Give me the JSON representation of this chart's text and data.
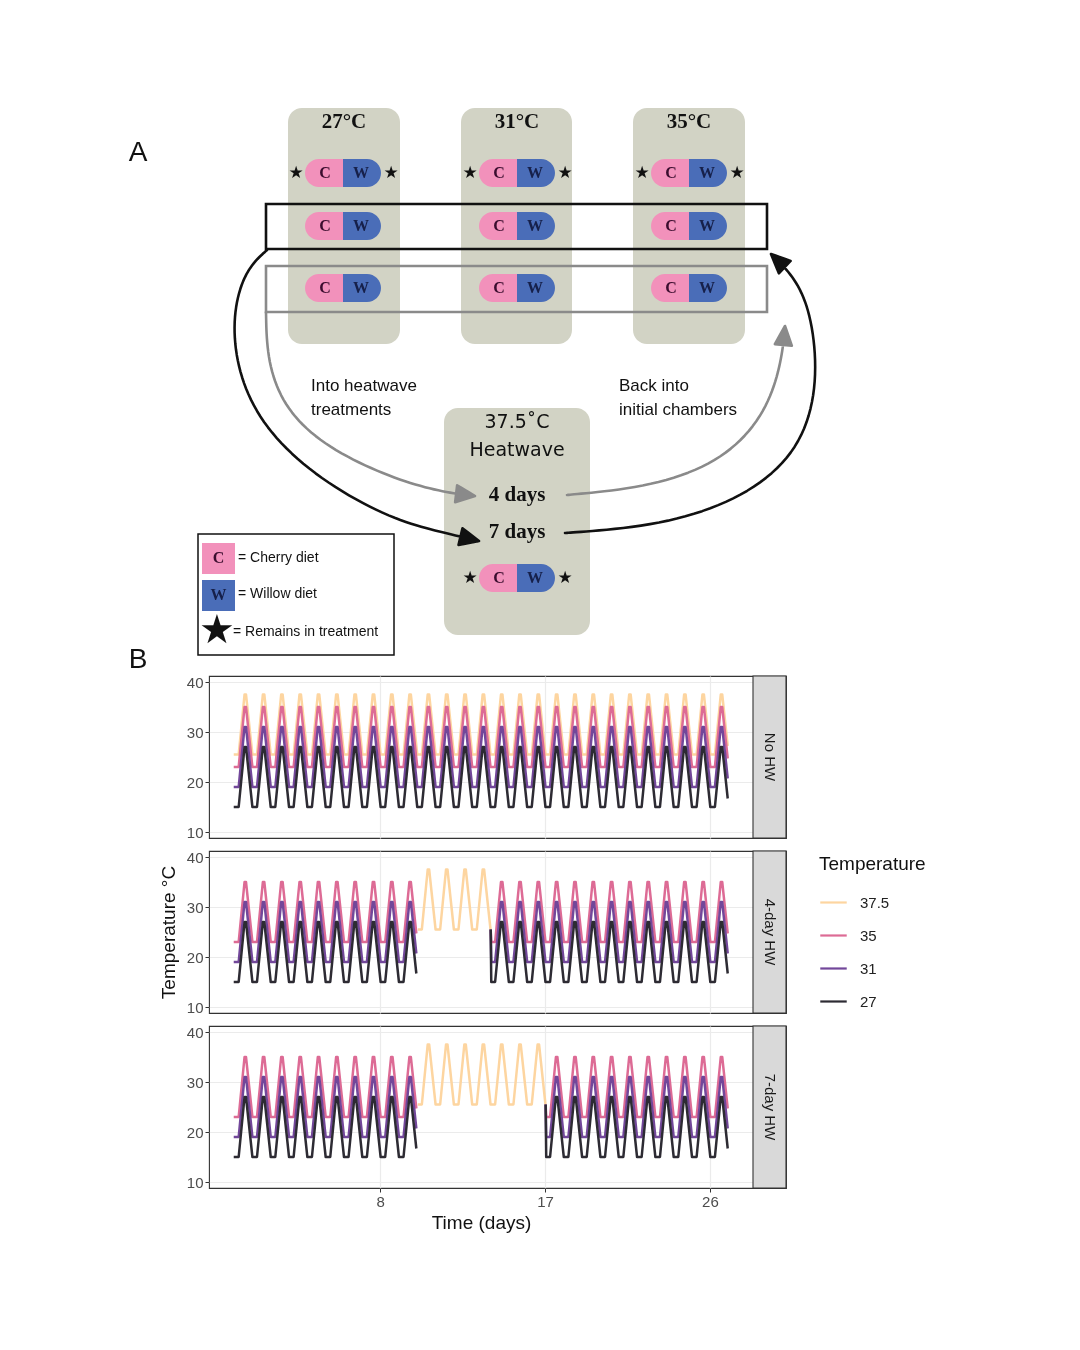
{
  "chart_data": [
    {
      "type": "other",
      "annotations": [
        "A",
        "27°C",
        "31°C",
        "35°C",
        "C",
        "W",
        "Into heatwave treatments",
        "Back into initial chambers",
        "37.5˚C Heatwave",
        "4 days",
        "7 days",
        "= Cherry diet",
        "= Willow diet",
        "= Remains in treatment",
        "★"
      ]
    },
    {
      "type": "line",
      "annotations": [
        "No HW",
        "B"
      ],
      "legend_title": "Temperature",
      "legend": "right",
      "xlim": [
        -1.35,
        28.35
      ],
      "xticks": [
        8,
        17,
        26
      ],
      "ylim": [
        8.8,
        41.2
      ],
      "yticks": [
        10,
        20,
        30,
        40
      ],
      "tick_labels": "y",
      "grid": true,
      "x": [
        0,
        0.27,
        0.59,
        0.67,
        1.02,
        1.27,
        1.59,
        1.67,
        2.02,
        2.27,
        2.59,
        2.67,
        3.02,
        3.27,
        3.59,
        3.67,
        4.02,
        4.27,
        4.59,
        4.67,
        5.02,
        5.27,
        5.59,
        5.67,
        6.02,
        6.27,
        6.59,
        6.67,
        7.02,
        7.27,
        7.59,
        7.67,
        8.02,
        8.27,
        8.59,
        8.67,
        9.02,
        9.27,
        9.59,
        9.67,
        10.02,
        10.27,
        10.59,
        10.67,
        11.02,
        11.27,
        11.59,
        11.67,
        12.02,
        12.27,
        12.59,
        12.67,
        13.02,
        13.27,
        13.59,
        13.67,
        14.02,
        14.27,
        14.59,
        14.67,
        15.02,
        15.27,
        15.59,
        15.67,
        16.02,
        16.27,
        16.59,
        16.67,
        17.02,
        17.27,
        17.59,
        17.67,
        18.02,
        18.27,
        18.59,
        18.67,
        19.02,
        19.27,
        19.59,
        19.67,
        20.02,
        20.27,
        20.59,
        20.67,
        21.02,
        21.27,
        21.59,
        21.67,
        22.02,
        22.27,
        22.59,
        22.67,
        23.02,
        23.27,
        23.59,
        23.67,
        24.02,
        24.27,
        24.59,
        24.67,
        25.02,
        25.27,
        25.59,
        25.67,
        26.02,
        26.27,
        26.59,
        26.67,
        26.97
      ],
      "series": [
        {
          "name": "37.5",
          "color": "#fdd5a0",
          "values": [
            25.5,
            25.5,
            37.5,
            37.5,
            25.5,
            25.5,
            37.5,
            37.5,
            25.5,
            25.5,
            37.5,
            37.5,
            25.5,
            25.5,
            37.5,
            37.5,
            25.5,
            25.5,
            37.5,
            37.5,
            25.5,
            25.5,
            37.5,
            37.5,
            25.5,
            25.5,
            37.5,
            37.5,
            25.5,
            25.5,
            37.5,
            37.5,
            25.5,
            25.5,
            37.5,
            37.5,
            25.5,
            25.5,
            37.5,
            37.5,
            25.5,
            25.5,
            37.5,
            37.5,
            25.5,
            25.5,
            37.5,
            37.5,
            25.5,
            25.5,
            37.5,
            37.5,
            25.5,
            25.5,
            37.5,
            37.5,
            25.5,
            25.5,
            37.5,
            37.5,
            25.5,
            25.5,
            37.5,
            37.5,
            25.5,
            25.5,
            37.5,
            37.5,
            25.5,
            25.5,
            37.5,
            37.5,
            25.5,
            25.5,
            37.5,
            37.5,
            25.5,
            25.5,
            37.5,
            37.5,
            25.5,
            25.5,
            37.5,
            37.5,
            25.5,
            25.5,
            37.5,
            37.5,
            25.5,
            25.5,
            37.5,
            37.5,
            25.5,
            25.5,
            37.5,
            37.5,
            25.5,
            25.5,
            37.5,
            37.5,
            25.5,
            25.5,
            37.5,
            37.5,
            25.5,
            25.5,
            37.5,
            37.5,
            27.2
          ]
        },
        {
          "name": "35",
          "color": "#dd6b95",
          "values": [
            23,
            23,
            35,
            35,
            23,
            23,
            35,
            35,
            23,
            23,
            35,
            35,
            23,
            23,
            35,
            35,
            23,
            23,
            35,
            35,
            23,
            23,
            35,
            35,
            23,
            23,
            35,
            35,
            23,
            23,
            35,
            35,
            23,
            23,
            35,
            35,
            23,
            23,
            35,
            35,
            23,
            23,
            35,
            35,
            23,
            23,
            35,
            35,
            23,
            23,
            35,
            35,
            23,
            23,
            35,
            35,
            23,
            23,
            35,
            35,
            23,
            23,
            35,
            35,
            23,
            23,
            35,
            35,
            23,
            23,
            35,
            35,
            23,
            23,
            35,
            35,
            23,
            23,
            35,
            35,
            23,
            23,
            35,
            35,
            23,
            23,
            35,
            35,
            23,
            23,
            35,
            35,
            23,
            23,
            35,
            35,
            23,
            23,
            35,
            35,
            23,
            23,
            35,
            35,
            23,
            23,
            35,
            35,
            24.7
          ]
        },
        {
          "name": "31",
          "color": "#72479a",
          "values": [
            19,
            19,
            31,
            31,
            19,
            19,
            31,
            31,
            19,
            19,
            31,
            31,
            19,
            19,
            31,
            31,
            19,
            19,
            31,
            31,
            19,
            19,
            31,
            31,
            19,
            19,
            31,
            31,
            19,
            19,
            31,
            31,
            19,
            19,
            31,
            31,
            19,
            19,
            31,
            31,
            19,
            19,
            31,
            31,
            19,
            19,
            31,
            31,
            19,
            19,
            31,
            31,
            19,
            19,
            31,
            31,
            19,
            19,
            31,
            31,
            19,
            19,
            31,
            31,
            19,
            19,
            31,
            31,
            19,
            19,
            31,
            31,
            19,
            19,
            31,
            31,
            19,
            19,
            31,
            31,
            19,
            19,
            31,
            31,
            19,
            19,
            31,
            31,
            19,
            19,
            31,
            31,
            19,
            19,
            31,
            31,
            19,
            19,
            31,
            31,
            19,
            19,
            31,
            31,
            19,
            19,
            31,
            31,
            20.7
          ]
        },
        {
          "name": "27",
          "color": "#2d2b33",
          "values": [
            15,
            15,
            27,
            27,
            15,
            15,
            27,
            27,
            15,
            15,
            27,
            27,
            15,
            15,
            27,
            27,
            15,
            15,
            27,
            27,
            15,
            15,
            27,
            27,
            15,
            15,
            27,
            27,
            15,
            15,
            27,
            27,
            15,
            15,
            27,
            27,
            15,
            15,
            27,
            27,
            15,
            15,
            27,
            27,
            15,
            15,
            27,
            27,
            15,
            15,
            27,
            27,
            15,
            15,
            27,
            27,
            15,
            15,
            27,
            27,
            15,
            15,
            27,
            27,
            15,
            15,
            27,
            27,
            15,
            15,
            27,
            27,
            15,
            15,
            27,
            27,
            15,
            15,
            27,
            27,
            15,
            15,
            27,
            27,
            15,
            15,
            27,
            27,
            15,
            15,
            27,
            27,
            15,
            15,
            27,
            27,
            15,
            15,
            27,
            27,
            15,
            15,
            27,
            27,
            15,
            15,
            27,
            27,
            16.7
          ]
        }
      ]
    },
    {
      "type": "line",
      "annotations": [
        "4-day HW"
      ],
      "ylabel": "Temperature °C",
      "xlim": [
        -1.35,
        28.35
      ],
      "xticks": [
        8,
        17,
        26
      ],
      "ylim": [
        8.8,
        41.2
      ],
      "yticks": [
        10,
        20,
        30,
        40
      ],
      "tick_labels": "y",
      "grid": true,
      "x": [
        0,
        0.27,
        0.59,
        0.67,
        1.02,
        1.27,
        1.59,
        1.67,
        2.02,
        2.27,
        2.59,
        2.67,
        3.02,
        3.27,
        3.59,
        3.67,
        4.02,
        4.27,
        4.59,
        4.67,
        5.02,
        5.27,
        5.59,
        5.67,
        6.02,
        6.27,
        6.59,
        6.67,
        7.02,
        7.27,
        7.59,
        7.67,
        8.02,
        8.27,
        8.59,
        8.67,
        9.02,
        9.27,
        9.59,
        9.67,
        9.97,
        12,
        14.03,
        14.06,
        14.27,
        14.59,
        14.67,
        15.02,
        15.27,
        15.59,
        15.67,
        16.02,
        16.27,
        16.59,
        16.67,
        17.02,
        17.27,
        17.59,
        17.67,
        18.02,
        18.27,
        18.59,
        18.67,
        19.02,
        19.27,
        19.59,
        19.67,
        20.02,
        20.27,
        20.59,
        20.67,
        21.02,
        21.27,
        21.59,
        21.67,
        22.02,
        22.27,
        22.59,
        22.67,
        23.02,
        23.27,
        23.59,
        23.67,
        24.02,
        24.27,
        24.59,
        24.67,
        25.02,
        25.27,
        25.59,
        25.67,
        26.02,
        26.27,
        26.59,
        26.67,
        26.97
      ],
      "series": [
        {
          "name": "37.5",
          "color": "#fdd5a0",
          "x": [
            10.05,
            10.27,
            10.59,
            10.67,
            11.02,
            11.27,
            11.59,
            11.67,
            12.02,
            12.27,
            12.59,
            12.67,
            13.02,
            13.27,
            13.59,
            13.67,
            14.02
          ],
          "values": [
            25.5,
            25.5,
            37.5,
            37.5,
            25.5,
            25.5,
            37.5,
            37.5,
            25.5,
            25.5,
            37.5,
            37.5,
            25.5,
            25.5,
            37.5,
            37.5,
            25.5
          ]
        },
        {
          "name": "35",
          "color": "#dd6b95",
          "values": [
            23,
            23,
            35,
            35,
            23,
            23,
            35,
            35,
            23,
            23,
            35,
            35,
            23,
            23,
            35,
            35,
            23,
            23,
            35,
            35,
            23,
            23,
            35,
            35,
            23,
            23,
            35,
            35,
            23,
            23,
            35,
            35,
            23,
            23,
            35,
            35,
            23,
            23,
            35,
            35,
            24.7,
            null,
            25.5,
            23,
            23,
            35,
            35,
            23,
            23,
            35,
            35,
            23,
            23,
            35,
            35,
            23,
            23,
            35,
            35,
            23,
            23,
            35,
            35,
            23,
            23,
            35,
            35,
            23,
            23,
            35,
            35,
            23,
            23,
            35,
            35,
            23,
            23,
            35,
            35,
            23,
            23,
            35,
            35,
            23,
            23,
            35,
            35,
            23,
            23,
            35,
            35,
            23,
            23,
            35,
            35,
            24.7
          ]
        },
        {
          "name": "31",
          "color": "#72479a",
          "values": [
            19,
            19,
            31,
            31,
            19,
            19,
            31,
            31,
            19,
            19,
            31,
            31,
            19,
            19,
            31,
            31,
            19,
            19,
            31,
            31,
            19,
            19,
            31,
            31,
            19,
            19,
            31,
            31,
            19,
            19,
            31,
            31,
            19,
            19,
            31,
            31,
            19,
            19,
            31,
            31,
            20.7,
            null,
            25.5,
            19,
            19,
            31,
            31,
            19,
            19,
            31,
            31,
            19,
            19,
            31,
            31,
            19,
            19,
            31,
            31,
            19,
            19,
            31,
            31,
            19,
            19,
            31,
            31,
            19,
            19,
            31,
            31,
            19,
            19,
            31,
            31,
            19,
            19,
            31,
            31,
            19,
            19,
            31,
            31,
            19,
            19,
            31,
            31,
            19,
            19,
            31,
            31,
            19,
            19,
            31,
            31,
            20.7
          ]
        },
        {
          "name": "27",
          "color": "#2d2b33",
          "values": [
            15,
            15,
            27,
            27,
            15,
            15,
            27,
            27,
            15,
            15,
            27,
            27,
            15,
            15,
            27,
            27,
            15,
            15,
            27,
            27,
            15,
            15,
            27,
            27,
            15,
            15,
            27,
            27,
            15,
            15,
            27,
            27,
            15,
            15,
            27,
            27,
            15,
            15,
            27,
            27,
            16.7,
            null,
            25.5,
            15,
            15,
            27,
            27,
            15,
            15,
            27,
            27,
            15,
            15,
            27,
            27,
            15,
            15,
            27,
            27,
            15,
            15,
            27,
            27,
            15,
            15,
            27,
            27,
            15,
            15,
            27,
            27,
            15,
            15,
            27,
            27,
            15,
            15,
            27,
            27,
            15,
            15,
            27,
            27,
            15,
            15,
            27,
            27,
            15,
            15,
            27,
            27,
            15,
            15,
            27,
            27,
            16.7
          ]
        }
      ]
    },
    {
      "type": "line",
      "annotations": [
        "7-day HW"
      ],
      "xlabel": "Time (days)",
      "xlim": [
        -1.35,
        28.35
      ],
      "xticks": [
        8,
        17,
        26
      ],
      "ylim": [
        8.8,
        41.2
      ],
      "yticks": [
        10,
        20,
        30,
        40
      ],
      "grid": true,
      "x": [
        0,
        0.27,
        0.59,
        0.67,
        1.02,
        1.27,
        1.59,
        1.67,
        2.02,
        2.27,
        2.59,
        2.67,
        3.02,
        3.27,
        3.59,
        3.67,
        4.02,
        4.27,
        4.59,
        4.67,
        5.02,
        5.27,
        5.59,
        5.67,
        6.02,
        6.27,
        6.59,
        6.67,
        7.02,
        7.27,
        7.59,
        7.67,
        8.02,
        8.27,
        8.59,
        8.67,
        9.02,
        9.27,
        9.59,
        9.67,
        9.97,
        13.5,
        17.03,
        17.06,
        17.27,
        17.59,
        17.67,
        18.02,
        18.27,
        18.59,
        18.67,
        19.02,
        19.27,
        19.59,
        19.67,
        20.02,
        20.27,
        20.59,
        20.67,
        21.02,
        21.27,
        21.59,
        21.67,
        22.02,
        22.27,
        22.59,
        22.67,
        23.02,
        23.27,
        23.59,
        23.67,
        24.02,
        24.27,
        24.59,
        24.67,
        25.02,
        25.27,
        25.59,
        25.67,
        26.02,
        26.27,
        26.59,
        26.67,
        26.97
      ],
      "series": [
        {
          "name": "37.5",
          "color": "#fdd5a0",
          "x": [
            10.05,
            10.27,
            10.59,
            10.67,
            11.02,
            11.27,
            11.59,
            11.67,
            12.02,
            12.27,
            12.59,
            12.67,
            13.02,
            13.27,
            13.59,
            13.67,
            14.02,
            14.27,
            14.59,
            14.67,
            15.02,
            15.27,
            15.59,
            15.67,
            16.02,
            16.27,
            16.59,
            16.67,
            17.02
          ],
          "values": [
            25.5,
            25.5,
            37.5,
            37.5,
            25.5,
            25.5,
            37.5,
            37.5,
            25.5,
            25.5,
            37.5,
            37.5,
            25.5,
            25.5,
            37.5,
            37.5,
            25.5,
            25.5,
            37.5,
            37.5,
            25.5,
            25.5,
            37.5,
            37.5,
            25.5,
            25.5,
            37.5,
            37.5,
            25.5
          ]
        },
        {
          "name": "35",
          "color": "#dd6b95",
          "values": [
            23,
            23,
            35,
            35,
            23,
            23,
            35,
            35,
            23,
            23,
            35,
            35,
            23,
            23,
            35,
            35,
            23,
            23,
            35,
            35,
            23,
            23,
            35,
            35,
            23,
            23,
            35,
            35,
            23,
            23,
            35,
            35,
            23,
            23,
            35,
            35,
            23,
            23,
            35,
            35,
            24.7,
            null,
            25.5,
            23,
            23,
            35,
            35,
            23,
            23,
            35,
            35,
            23,
            23,
            35,
            35,
            23,
            23,
            35,
            35,
            23,
            23,
            35,
            35,
            23,
            23,
            35,
            35,
            23,
            23,
            35,
            35,
            23,
            23,
            35,
            35,
            23,
            23,
            35,
            35,
            23,
            23,
            35,
            35,
            24.7
          ]
        },
        {
          "name": "31",
          "color": "#72479a",
          "values": [
            19,
            19,
            31,
            31,
            19,
            19,
            31,
            31,
            19,
            19,
            31,
            31,
            19,
            19,
            31,
            31,
            19,
            19,
            31,
            31,
            19,
            19,
            31,
            31,
            19,
            19,
            31,
            31,
            19,
            19,
            31,
            31,
            19,
            19,
            31,
            31,
            19,
            19,
            31,
            31,
            20.7,
            null,
            25.5,
            19,
            19,
            31,
            31,
            19,
            19,
            31,
            31,
            19,
            19,
            31,
            31,
            19,
            19,
            31,
            31,
            19,
            19,
            31,
            31,
            19,
            19,
            31,
            31,
            19,
            19,
            31,
            31,
            19,
            19,
            31,
            31,
            19,
            19,
            31,
            31,
            19,
            19,
            31,
            31,
            20.7
          ]
        },
        {
          "name": "27",
          "color": "#2d2b33",
          "values": [
            15,
            15,
            27,
            27,
            15,
            15,
            27,
            27,
            15,
            15,
            27,
            27,
            15,
            15,
            27,
            27,
            15,
            15,
            27,
            27,
            15,
            15,
            27,
            27,
            15,
            15,
            27,
            27,
            15,
            15,
            27,
            27,
            15,
            15,
            27,
            27,
            15,
            15,
            27,
            27,
            16.7,
            null,
            25.5,
            15,
            15,
            27,
            27,
            15,
            15,
            27,
            27,
            15,
            15,
            27,
            27,
            15,
            15,
            27,
            27,
            15,
            15,
            27,
            27,
            15,
            15,
            27,
            27,
            15,
            15,
            27,
            27,
            15,
            15,
            27,
            27,
            15,
            15,
            27,
            27,
            15,
            15,
            27,
            27,
            16.7
          ]
        }
      ]
    }
  ]
}
